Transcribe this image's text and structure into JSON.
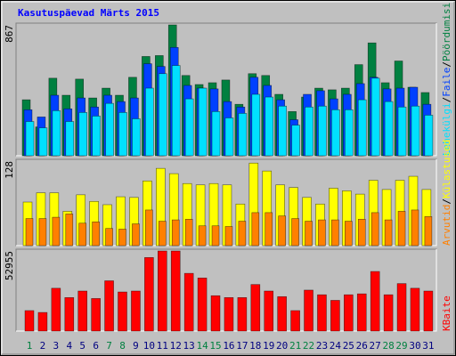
{
  "title": "Kasutuspäevad Märts 2015",
  "legend_separator": "/",
  "chart_data": [
    {
      "type": "bar",
      "ylim": [
        0,
        867
      ],
      "yticks": [
        867
      ],
      "series": [
        {
          "name": "Pöördumisi",
          "color": "#008040",
          "values": [
            371,
            191,
            514,
            401,
            508,
            383,
            448,
            401,
            520,
            658,
            664,
            867,
            532,
            472,
            484,
            502,
            341,
            544,
            532,
            407,
            293,
            389,
            448,
            437,
            448,
            604,
            748,
            484,
            628,
            454,
            419
          ]
        },
        {
          "name": "Faile",
          "color": "#0040ff",
          "values": [
            305,
            257,
            401,
            311,
            383,
            323,
            401,
            359,
            383,
            610,
            592,
            718,
            466,
            448,
            443,
            359,
            323,
            520,
            466,
            371,
            239,
            407,
            431,
            377,
            407,
            478,
            520,
            443,
            448,
            454,
            341
          ]
        },
        {
          "name": "Lehekülgi",
          "color": "#00e0ff",
          "values": [
            227,
            185,
            299,
            227,
            287,
            263,
            347,
            287,
            245,
            448,
            544,
            598,
            377,
            448,
            293,
            251,
            281,
            407,
            389,
            329,
            203,
            323,
            329,
            305,
            305,
            371,
            514,
            359,
            323,
            329,
            269
          ]
        }
      ]
    },
    {
      "type": "bar",
      "ylim": [
        0,
        128
      ],
      "yticks": [
        128
      ],
      "series": [
        {
          "name": "Külastused",
          "color": "#ffff00",
          "values": [
            66,
            80,
            80,
            52,
            77,
            67,
            62,
            74,
            73,
            98,
            117,
            109,
            94,
            92,
            94,
            92,
            63,
            125,
            113,
            92,
            88,
            73,
            63,
            87,
            83,
            78,
            99,
            85,
            99,
            105,
            85
          ]
        },
        {
          "name": "Arvutid",
          "color": "#ff8000",
          "values": [
            41,
            41,
            43,
            48,
            34,
            36,
            26,
            25,
            33,
            54,
            37,
            39,
            40,
            30,
            30,
            29,
            37,
            50,
            50,
            45,
            41,
            37,
            39,
            39,
            37,
            40,
            50,
            39,
            52,
            54,
            44
          ]
        }
      ]
    },
    {
      "type": "bar",
      "ylim": [
        0,
        52955
      ],
      "yticks": [
        52955
      ],
      "categories": [
        "1",
        "2",
        "3",
        "4",
        "5",
        "6",
        "7",
        "8",
        "9",
        "10",
        "11",
        "12",
        "13",
        "14",
        "15",
        "16",
        "17",
        "18",
        "19",
        "20",
        "21",
        "22",
        "23",
        "24",
        "25",
        "26",
        "27",
        "28",
        "29",
        "30",
        "31"
      ],
      "category_colors": [
        "#008040",
        "#000080",
        "#000080",
        "#000080",
        "#000080",
        "#000080",
        "#008040",
        "#008040",
        "#000080",
        "#000080",
        "#000080",
        "#000080",
        "#000080",
        "#008040",
        "#008040",
        "#000080",
        "#000080",
        "#000080",
        "#000080",
        "#000080",
        "#008040",
        "#008040",
        "#000080",
        "#000080",
        "#000080",
        "#000080",
        "#000080",
        "#008040",
        "#008040",
        "#000080",
        "#000080"
      ],
      "series": [
        {
          "name": "KBaite",
          "color": "#ff0000",
          "values": [
            13547,
            12316,
            28327,
            22168,
            26479,
            21552,
            33251,
            25862,
            26479,
            48645,
            52955,
            52955,
            38178,
            35099,
            23399,
            22168,
            22168,
            30789,
            26479,
            22783,
            13547,
            27094,
            24015,
            20320,
            24015,
            24630,
            39409,
            24015,
            31403,
            28327,
            26479
          ]
        }
      ]
    }
  ]
}
